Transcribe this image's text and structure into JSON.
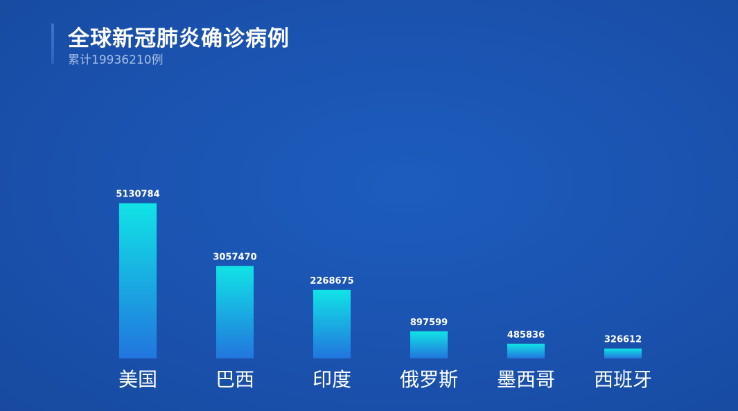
{
  "header": {
    "title": "全球新冠肺炎确诊病例",
    "subtitle": "累计19936210例"
  },
  "colors": {
    "background": "#1a53b0",
    "bar_top": "#11e3e6",
    "bar_bottom": "#2275de",
    "axis": "#3aa7d6"
  },
  "chart_data": {
    "type": "bar",
    "title": "全球新冠肺炎确诊病例",
    "subtitle": "累计19936210例",
    "categories": [
      "美国",
      "巴西",
      "印度",
      "俄罗斯",
      "墨西哥",
      "西班牙"
    ],
    "values": [
      5130784,
      3057470,
      2268675,
      897599,
      485836,
      326612
    ],
    "value_labels": [
      "5130784",
      "3057470",
      "2268675",
      "897599",
      "485836",
      "326612"
    ],
    "xlabel": "",
    "ylabel": "",
    "ylim": [
      0,
      7000000
    ],
    "grid": false,
    "legend": "none"
  }
}
